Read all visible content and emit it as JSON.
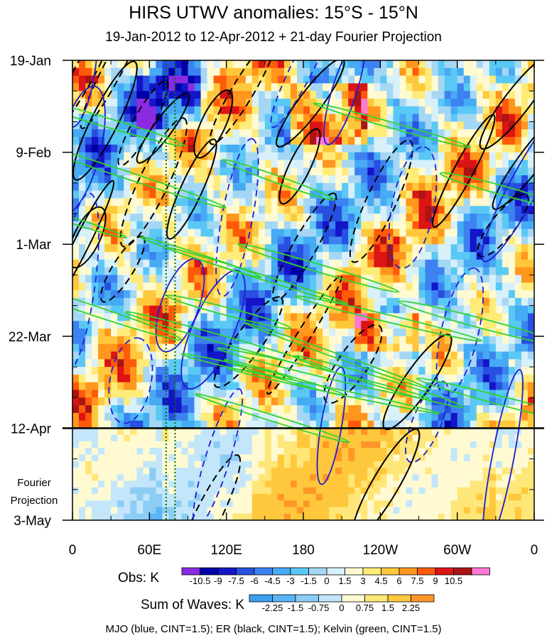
{
  "chart_data": {
    "type": "heatmap",
    "title": "HIRS UTWV anomalies: 15°S - 15°N",
    "subtitle": "19-Jan-2012 to 12-Apr-2012 + 21-day Fourier Projection",
    "x_tick_labels": [
      "0",
      "60E",
      "120E",
      "180",
      "120W",
      "60W",
      "0"
    ],
    "x_tick_lons": [
      0,
      60,
      120,
      180,
      240,
      300,
      360
    ],
    "y_tick_labels": [
      "19-Jan",
      "9-Feb",
      "1-Mar",
      "22-Mar",
      "12-Apr",
      "3-May"
    ],
    "y_tick_days": [
      0,
      21,
      42,
      63,
      84,
      105
    ],
    "projection_start_day": 84,
    "projection_label_line1": "Fourier",
    "projection_label_line2": "Projection",
    "obs_colorbar": {
      "label": "Obs: K",
      "levels": [
        "-10.5",
        "-9",
        "-7.5",
        "-6",
        "-4.5",
        "-3",
        "-1.5",
        "0",
        "1.5",
        "3",
        "4.5",
        "6",
        "7.5",
        "9",
        "10.5"
      ],
      "colors": [
        "#8a2be2",
        "#0000a8",
        "#1414c8",
        "#2850e0",
        "#3c82f0",
        "#46aaf5",
        "#5ac8f5",
        "#a5d7f5",
        "#d7f0fa",
        "#fffad2",
        "#ffeb78",
        "#ffc83c",
        "#ff961e",
        "#ff5a0a",
        "#dc1414",
        "#aa1414",
        "#ff78d2"
      ]
    },
    "waves_colorbar": {
      "label": "Sum of Waves: K",
      "levels": [
        "-2.25",
        "-1.5",
        "-0.75",
        "0",
        "0.75",
        "1.5",
        "2.25"
      ],
      "colors": [
        "#3c9ff0",
        "#5ab4f5",
        "#8ccdf5",
        "#c3e6fa",
        "#fffad2",
        "#ffe678",
        "#ffc83c",
        "#ff9628"
      ]
    },
    "overlays": [
      {
        "name": "MJO",
        "color": "blue",
        "cint": 1.5
      },
      {
        "name": "ER",
        "color": "black",
        "cint": 1.5
      },
      {
        "name": "Kelvin",
        "color": "green",
        "cint": 1.5
      }
    ]
  },
  "footer": "MJO (blue, CINT=1.5); ER (black, CINT=1.5); Kelvin (green, CINT=1.5)"
}
